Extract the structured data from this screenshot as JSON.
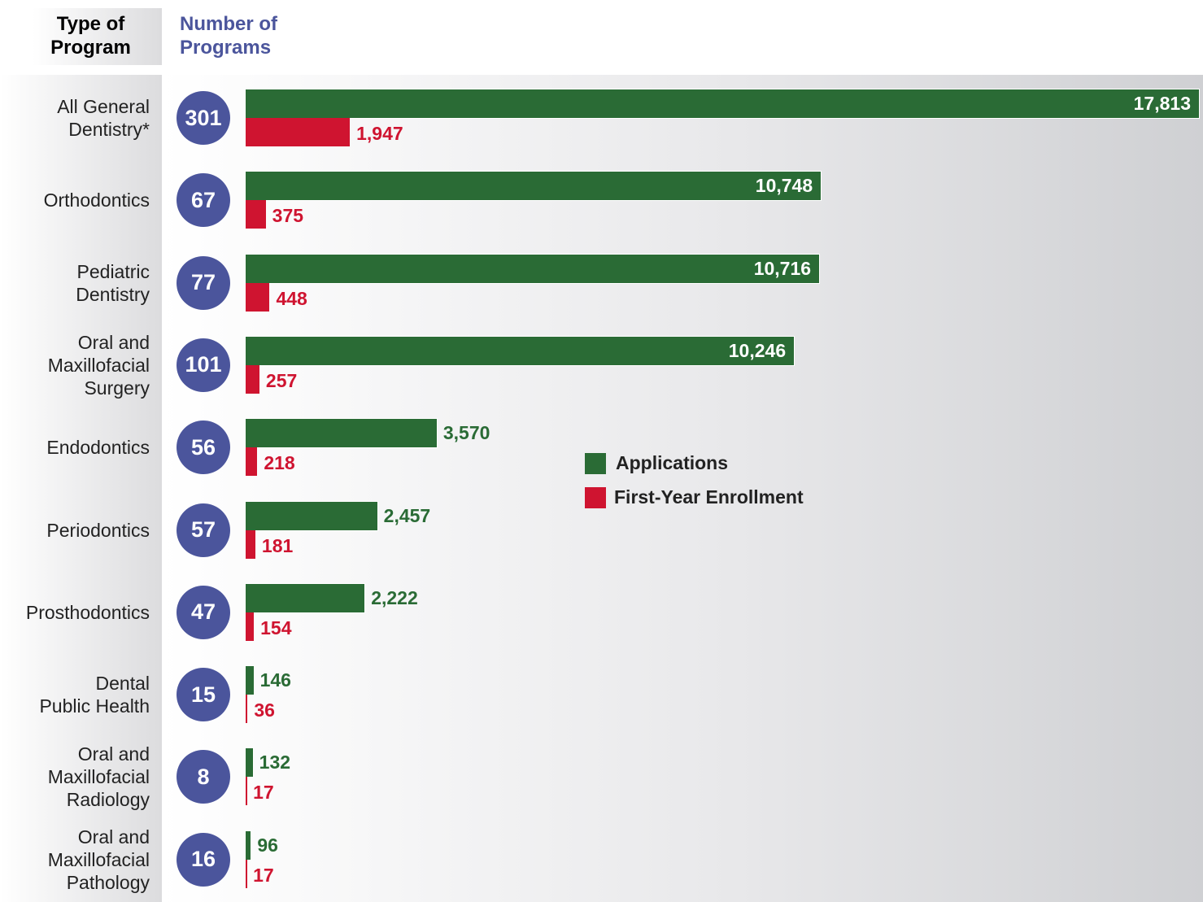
{
  "chart_data": {
    "type": "bar",
    "orientation": "horizontal",
    "category_header": "Type of\nProgram",
    "programs_header": "Number of\nPrograms",
    "categories": [
      "All General\nDentistry*",
      "Orthodontics",
      "Pediatric\nDentistry",
      "Oral and\nMaxillofacial\nSurgery",
      "Endodontics",
      "Periodontics",
      "Prosthodontics",
      "Dental\nPublic Health",
      "Oral and\nMaxillofacial\nRadiology",
      "Oral and\nMaxillofacial\nPathology"
    ],
    "programs": [
      301,
      67,
      77,
      101,
      56,
      57,
      47,
      15,
      8,
      16
    ],
    "programs_color": "#4b559c",
    "series": [
      {
        "name": "Applications",
        "color": "#2a6b35",
        "values": [
          17813,
          10748,
          10716,
          10246,
          3570,
          2457,
          2222,
          146,
          132,
          96
        ],
        "value_labels": [
          "17,813",
          "10,748",
          "10,716",
          "10,246",
          "3,570",
          "2,457",
          "2,222",
          "146",
          "132",
          "96"
        ]
      },
      {
        "name": "First-Year Enrollment",
        "color": "#cf1430",
        "values": [
          1947,
          375,
          448,
          257,
          218,
          181,
          154,
          36,
          17,
          17
        ],
        "value_labels": [
          "1,947",
          "375",
          "448",
          "257",
          "218",
          "181",
          "154",
          "36",
          "17",
          "17"
        ]
      }
    ]
  }
}
